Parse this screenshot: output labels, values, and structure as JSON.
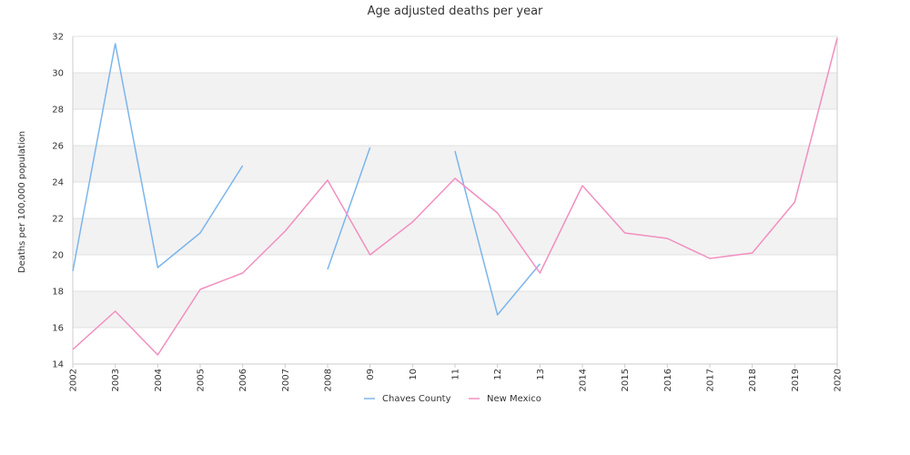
{
  "chart_data": {
    "type": "line",
    "title": "Age adjusted deaths per year",
    "xlabel": "",
    "ylabel": "Deaths per 100,000 population",
    "categories": [
      "2002",
      "2003",
      "2004",
      "2005",
      "2006",
      "2007",
      "2008",
      "09",
      "10",
      "11",
      "12",
      "13",
      "2014",
      "2015",
      "2016",
      "2017",
      "2018",
      "2019",
      "2020"
    ],
    "ylim": [
      14,
      32
    ],
    "yticks": [
      14,
      16,
      18,
      20,
      22,
      24,
      26,
      28,
      30,
      32
    ],
    "grid": "horizontal bands",
    "legend_position": "bottom",
    "series": [
      {
        "name": "Chaves County",
        "color": "#7cb5ec",
        "values": [
          19.1,
          31.6,
          19.3,
          21.2,
          24.9,
          null,
          19.2,
          25.9,
          null,
          25.7,
          16.7,
          19.5,
          null,
          null,
          null,
          null,
          null,
          null,
          31.9
        ]
      },
      {
        "name": "New Mexico",
        "color": "#f28fc0",
        "values": [
          14.8,
          16.9,
          14.5,
          18.1,
          19.0,
          21.3,
          24.1,
          20.0,
          21.8,
          24.2,
          22.3,
          19.0,
          23.8,
          21.2,
          20.9,
          19.8,
          20.1,
          22.9,
          31.9
        ]
      }
    ]
  },
  "colors": {
    "band": "#f2f2f2",
    "grid": "#e0e0e0",
    "axis": "#cccccc"
  }
}
